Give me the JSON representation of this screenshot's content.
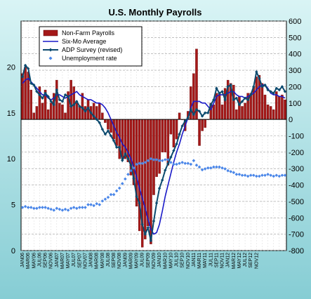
{
  "chart_data": {
    "type": "bar",
    "title": "U.S. Monthly Payrolls",
    "xlabel": "",
    "ylabel_left": "",
    "ylabel_right": "",
    "y_left_lim": [
      0,
      25
    ],
    "y_left_ticks": [
      "0",
      "5",
      "10",
      "15",
      "20"
    ],
    "y_right_lim": [
      -800,
      600
    ],
    "y_right_ticks": [
      "600",
      "500",
      "400",
      "300",
      "200",
      "100",
      "0",
      "-100",
      "-200",
      "-300",
      "-400",
      "-500",
      "-600",
      "-700",
      "-800"
    ],
    "grid": true,
    "legend_position": "top-left",
    "x_tick_labels": [
      "JAN06",
      "MAR06",
      "MAY06",
      "JUL06",
      "SEP06",
      "NOV06",
      "JAN07",
      "MAR07",
      "MAY07",
      "JUL07",
      "SEP07",
      "NOV07",
      "JAN08",
      "MAR08",
      "MAY08",
      "JUL08",
      "SEP08",
      "NOV08",
      "JAN09",
      "MAR09",
      "MAY09",
      "JUL09",
      "SEP09",
      "NOV09",
      "JAN10",
      "MAR10",
      "MAY10",
      "JUL10",
      "SEP10",
      "NOV10",
      "JAN11",
      "MAR11",
      "MAY11",
      "JUL11",
      "SEP11",
      "NOV11",
      "JAN12",
      "MAR12",
      "MAY12",
      "JUL12",
      "SEP12",
      "NOV12"
    ],
    "colors": {
      "bars": "#a41818",
      "six_mo": "#1a1ac8",
      "adp": "#0b4a6e",
      "unemployment": "#4a86e8",
      "plot_background": "#ffffff",
      "page_background_top": "#d6f3f4",
      "page_background_bottom": "#8ccfd6"
    },
    "series": [
      {
        "name": "Non-Farm Payrolls",
        "axis": "right",
        "values": [
          280,
          320,
          290,
          180,
          40,
          80,
          200,
          100,
          180,
          60,
          100,
          160,
          240,
          100,
          90,
          40,
          170,
          240,
          200,
          100,
          80,
          160,
          80,
          120,
          80,
          100,
          80,
          100,
          40,
          -20,
          -60,
          -80,
          -120,
          -160,
          -240,
          -240,
          -240,
          -260,
          -340,
          -400,
          -530,
          -680,
          -780,
          -730,
          -650,
          -760,
          -460,
          -350,
          -330,
          -200,
          -200,
          -280,
          -90,
          -170,
          -120,
          40,
          0,
          -70,
          50,
          200,
          280,
          430,
          -160,
          -70,
          -50,
          0,
          100,
          90,
          160,
          160,
          90,
          190,
          240,
          220,
          210,
          60,
          140,
          80,
          100,
          160,
          160,
          200,
          260,
          270,
          220,
          150,
          90,
          80,
          60,
          170,
          140,
          150,
          120
        ]
      },
      {
        "name": "Six-Mo Average",
        "axis": "right",
        "values": [
          220,
          240,
          250,
          230,
          210,
          190,
          170,
          150,
          150,
          130,
          120,
          130,
          150,
          150,
          140,
          130,
          140,
          150,
          160,
          170,
          150,
          140,
          130,
          120,
          120,
          110,
          100,
          100,
          90,
          70,
          40,
          0,
          -40,
          -80,
          -110,
          -150,
          -170,
          -200,
          -240,
          -290,
          -350,
          -420,
          -480,
          -540,
          -610,
          -670,
          -700,
          -690,
          -640,
          -560,
          -470,
          -400,
          -330,
          -260,
          -200,
          -150,
          -90,
          -40,
          10,
          70,
          110,
          110,
          110,
          100,
          100,
          80,
          60,
          100,
          140,
          150,
          150,
          150,
          160,
          170,
          170,
          150,
          140,
          140,
          130,
          140,
          150,
          160,
          180,
          200,
          210,
          210,
          190,
          160,
          150,
          150,
          140,
          140,
          130
        ]
      },
      {
        "name": "ADP Survey (revised)",
        "axis": "right",
        "values": [
          260,
          330,
          310,
          220,
          210,
          170,
          150,
          130,
          160,
          140,
          110,
          90,
          180,
          120,
          110,
          150,
          140,
          80,
          90,
          110,
          80,
          70,
          50,
          70,
          40,
          20,
          0,
          -20,
          -60,
          -90,
          -70,
          -100,
          -130,
          -170,
          -170,
          -250,
          -210,
          -240,
          -280,
          -360,
          -470,
          -510,
          -640,
          -700,
          -660,
          -740,
          -620,
          -510,
          -420,
          -370,
          -310,
          -270,
          -230,
          -190,
          -150,
          -90,
          -40,
          -10,
          10,
          60,
          30,
          60,
          50,
          20,
          40,
          40,
          90,
          120,
          190,
          160,
          170,
          120,
          200,
          210,
          120,
          130,
          90,
          110,
          130,
          120,
          150,
          200,
          290,
          250,
          200,
          210,
          180,
          170,
          160,
          190,
          180,
          200,
          170
        ]
      },
      {
        "name": "Unemployment rate",
        "axis": "left",
        "values": [
          4.7,
          4.8,
          4.7,
          4.7,
          4.6,
          4.6,
          4.7,
          4.7,
          4.7,
          4.6,
          4.5,
          4.4,
          4.6,
          4.5,
          4.4,
          4.5,
          4.4,
          4.6,
          4.7,
          4.6,
          4.7,
          4.7,
          4.7,
          5.0,
          5.0,
          4.9,
          5.1,
          5.0,
          5.4,
          5.6,
          5.8,
          6.1,
          6.1,
          6.5,
          6.8,
          7.3,
          7.8,
          8.3,
          8.7,
          9.0,
          9.4,
          9.5,
          9.5,
          9.6,
          9.8,
          10.0,
          9.9,
          9.9,
          9.8,
          9.8,
          9.9,
          9.9,
          9.6,
          9.4,
          9.4,
          9.5,
          9.6,
          9.5,
          9.5,
          9.4,
          9.8,
          9.3,
          9.1,
          8.8,
          8.9,
          9.0,
          9.0,
          9.1,
          9.1,
          9.1,
          9.0,
          8.9,
          8.7,
          8.6,
          8.5,
          8.3,
          8.3,
          8.2,
          8.2,
          8.1,
          8.2,
          8.2,
          8.1,
          8.1,
          8.2,
          8.2,
          8.3,
          8.2,
          8.1,
          8.2,
          8.1,
          8.2,
          8.2
        ]
      }
    ]
  }
}
